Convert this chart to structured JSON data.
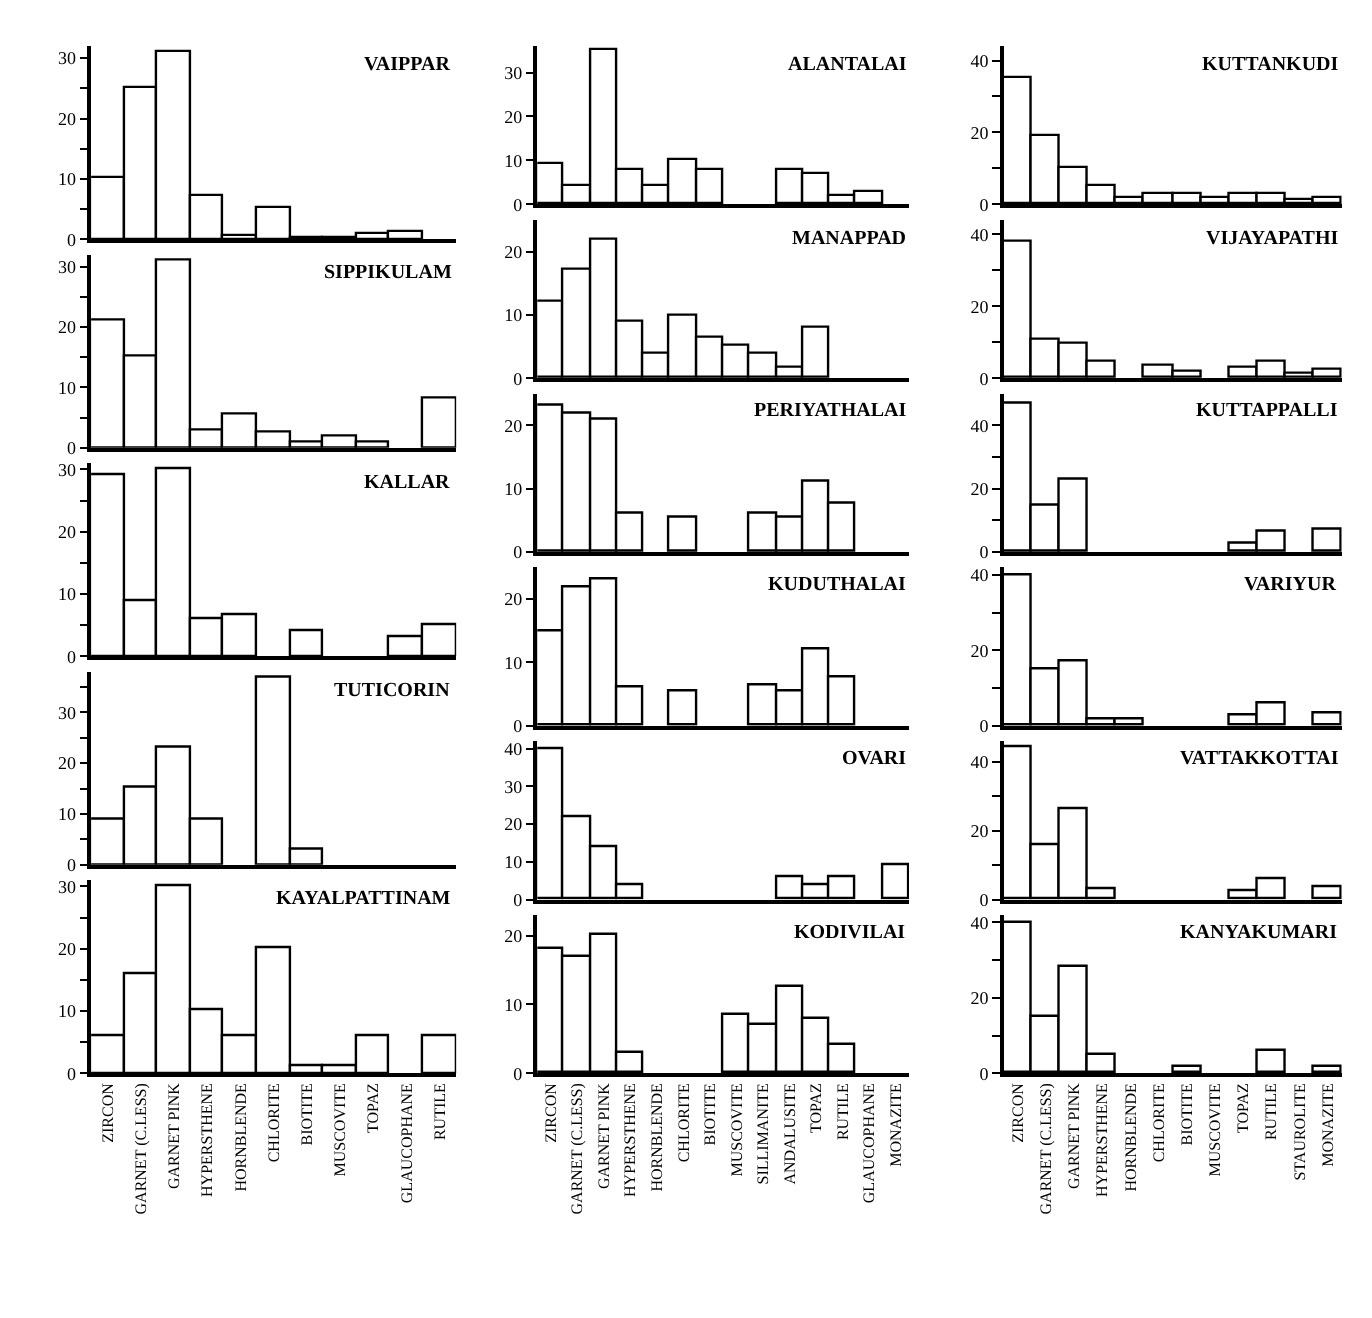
{
  "chart_data": [
    {
      "type": "bar",
      "title": "VAIPPAR",
      "categories": [
        "ZIRCON",
        "GARNET (C.LESS)",
        "GARNET PINK",
        "HYPERSTHENE",
        "HORNBLENDE",
        "CHLORITE",
        "BIOTITE",
        "MUSCOVITE",
        "TOPAZ",
        "GLAUCOPHANE",
        "RUTILE"
      ],
      "values": [
        10,
        25,
        31,
        7,
        0.5,
        5,
        0.3,
        0.3,
        1,
        1.2,
        null
      ],
      "color": "#ffffff",
      "ylim": [
        0,
        32
      ],
      "yticks": [
        0,
        {
          "value": 5,
          "label": null
        },
        10,
        {
          "value": 15,
          "label": null
        },
        20,
        {
          "value": 25,
          "label": null
        },
        30
      ],
      "tick_labels": "y"
    },
    {
      "type": "bar",
      "title": "SIPPIKULAM",
      "categories": [
        "ZIRCON",
        "GARNET (C.LESS)",
        "GARNET PINK",
        "HYPERSTHENE",
        "HORNBLENDE",
        "CHLORITE",
        "BIOTITE",
        "MUSCOVITE",
        "TOPAZ",
        "GLAUCOPHANE",
        "RUTILE"
      ],
      "values": [
        21,
        15,
        31,
        3,
        5.5,
        2.5,
        1,
        2,
        1,
        null,
        8
      ],
      "color": "#ffffff",
      "ylim": [
        0,
        32
      ],
      "yticks": [
        0,
        {
          "value": 5,
          "label": null
        },
        10,
        {
          "value": 15,
          "label": null
        },
        20,
        {
          "value": 25,
          "label": null
        },
        30
      ],
      "tick_labels": "y"
    },
    {
      "type": "bar",
      "title": "KALLAR",
      "categories": [
        "ZIRCON",
        "GARNET (C.LESS)",
        "GARNET PINK",
        "HYPERSTHENE",
        "HORNBLENDE",
        "CHLORITE",
        "BIOTITE",
        "MUSCOVITE",
        "TOPAZ",
        "GLAUCOPHANE",
        "RUTILE"
      ],
      "values": [
        29,
        9,
        30,
        6,
        6.5,
        null,
        4,
        null,
        null,
        3,
        5
      ],
      "color": "#ffffff",
      "ylim": [
        0,
        31
      ],
      "yticks": [
        0,
        {
          "value": 5,
          "label": null
        },
        10,
        {
          "value": 15,
          "label": null
        },
        20,
        {
          "value": 25,
          "label": null
        },
        30
      ],
      "tick_labels": "y"
    },
    {
      "type": "bar",
      "title": "TUTICORIN",
      "categories": [
        "ZIRCON",
        "GARNET (C.LESS)",
        "GARNET PINK",
        "HYPERSTHENE",
        "HORNBLENDE",
        "CHLORITE",
        "BIOTITE",
        "MUSCOVITE",
        "TOPAZ",
        "GLAUCOPHANE",
        "RUTILE"
      ],
      "values": [
        9,
        15,
        23,
        9,
        null,
        37,
        3,
        null,
        null,
        null,
        null
      ],
      "color": "#ffffff",
      "ylim": [
        0,
        38
      ],
      "yticks": [
        0,
        {
          "value": 5,
          "label": null
        },
        10,
        {
          "value": 15,
          "label": null
        },
        20,
        {
          "value": 25,
          "label": null
        },
        30,
        {
          "value": 35,
          "label": null
        }
      ],
      "tick_labels": "y"
    },
    {
      "type": "bar",
      "title": "KAYALPATTINAM",
      "categories": [
        "ZIRCON",
        "GARNET (C.LESS)",
        "GARNET PINK",
        "HYPERSTHENE",
        "HORNBLENDE",
        "CHLORITE",
        "BIOTITE",
        "MUSCOVITE",
        "TOPAZ",
        "GLAUCOPHANE",
        "RUTILE"
      ],
      "values": [
        6,
        16,
        30,
        10,
        6,
        20,
        1,
        1,
        6,
        null,
        6
      ],
      "color": "#ffffff",
      "ylim": [
        0,
        31
      ],
      "yticks": [
        0,
        {
          "value": 5,
          "label": null
        },
        10,
        {
          "value": 15,
          "label": null
        },
        20,
        {
          "value": 25,
          "label": null
        },
        30
      ]
    },
    {
      "type": "bar",
      "title": "ALANTALAI",
      "categories": [
        "ZIRCON",
        "GARNET (C.LESS)",
        "GARNET PINK",
        "HYPERSTHENE",
        "HORNBLENDE",
        "CHLORITE",
        "BIOTITE",
        "MUSCOVITE",
        "SILLIMANITE",
        "ANDALUSITE",
        "TOPAZ",
        "RUTILE",
        "GLAUCOPHANE",
        "MONAZITE"
      ],
      "values": [
        9,
        4,
        35,
        8,
        4,
        10,
        8,
        null,
        null,
        8,
        7,
        2,
        3,
        null
      ],
      "color": "#ffffff",
      "ylim": [
        0,
        36
      ],
      "yticks": [
        0,
        10,
        20,
        30
      ],
      "tick_labels": "y"
    },
    {
      "type": "bar",
      "title": "MANAPPAD",
      "categories": [
        "ZIRCON",
        "GARNET (C.LESS)",
        "GARNET PINK",
        "HYPERSTHENE",
        "HORNBLENDE",
        "CHLORITE",
        "BIOTITE",
        "MUSCOVITE",
        "SILLIMANITE",
        "ANDALUSITE",
        "TOPAZ",
        "RUTILE",
        "GLAUCOPHANE",
        "MONAZITE"
      ],
      "values": [
        12,
        17,
        22,
        9,
        4,
        10,
        6.5,
        5,
        4,
        1.5,
        8,
        null,
        null,
        null
      ],
      "color": "#ffffff",
      "ylim": [
        0,
        25
      ],
      "yticks": [
        0,
        10,
        20
      ],
      "tick_labels": "y"
    },
    {
      "type": "bar",
      "title": "PERIYATHALAI",
      "categories": [
        "ZIRCON",
        "GARNET (C.LESS)",
        "GARNET PINK",
        "HYPERSTHENE",
        "HORNBLENDE",
        "CHLORITE",
        "BIOTITE",
        "MUSCOVITE",
        "SILLIMANITE",
        "ANDALUSITE",
        "TOPAZ",
        "RUTILE",
        "GLAUCOPHANE",
        "MONAZITE"
      ],
      "values": [
        23,
        22,
        21,
        6,
        null,
        5.5,
        null,
        null,
        6,
        5.5,
        11,
        7.5,
        null,
        null
      ],
      "color": "#ffffff",
      "ylim": [
        0,
        25
      ],
      "yticks": [
        0,
        10,
        20
      ],
      "tick_labels": "y"
    },
    {
      "type": "bar",
      "title": "KUDUTHALAI",
      "categories": [
        "ZIRCON",
        "GARNET (C.LESS)",
        "GARNET PINK",
        "HYPERSTHENE",
        "HORNBLENDE",
        "CHLORITE",
        "BIOTITE",
        "MUSCOVITE",
        "SILLIMANITE",
        "ANDALUSITE",
        "TOPAZ",
        "RUTILE",
        "GLAUCOPHANE",
        "MONAZITE"
      ],
      "values": [
        15,
        22,
        23,
        6,
        null,
        5.5,
        null,
        null,
        6.5,
        5.5,
        12,
        7.5,
        null,
        null
      ],
      "color": "#ffffff",
      "ylim": [
        0,
        25
      ],
      "yticks": [
        0,
        10,
        20
      ],
      "tick_labels": "y"
    },
    {
      "type": "bar",
      "title": "OVARI",
      "categories": [
        "ZIRCON",
        "GARNET (C.LESS)",
        "GARNET PINK",
        "HYPERSTHENE",
        "HORNBLENDE",
        "CHLORITE",
        "BIOTITE",
        "MUSCOVITE",
        "SILLIMANITE",
        "ANDALUSITE",
        "TOPAZ",
        "RUTILE",
        "GLAUCOPHANE",
        "MONAZITE"
      ],
      "values": [
        40,
        22,
        14,
        4,
        null,
        null,
        null,
        null,
        null,
        6,
        4,
        6,
        null,
        9
      ],
      "color": "#ffffff",
      "ylim": [
        0,
        42
      ],
      "yticks": [
        0,
        10,
        20,
        30,
        40
      ],
      "tick_labels": "y"
    },
    {
      "type": "bar",
      "title": "KODIVILAI",
      "categories": [
        "ZIRCON",
        "GARNET (C.LESS)",
        "GARNET PINK",
        "HYPERSTHENE",
        "HORNBLENDE",
        "CHLORITE",
        "BIOTITE",
        "MUSCOVITE",
        "SILLIMANITE",
        "ANDALUSITE",
        "TOPAZ",
        "RUTILE",
        "GLAUCOPHANE",
        "MONAZITE"
      ],
      "values": [
        18,
        17,
        20,
        3,
        null,
        null,
        null,
        8.5,
        7,
        12.5,
        8,
        4,
        null,
        null
      ],
      "color": "#ffffff",
      "ylim": [
        0,
        23
      ],
      "yticks": [
        0,
        10,
        20
      ]
    },
    {
      "type": "bar",
      "title": "KUTTANKUDI",
      "categories": [
        "ZIRCON",
        "GARNET (C.LESS)",
        "GARNET PINK",
        "HYPERSTHENE",
        "HORNBLENDE",
        "CHLORITE",
        "BIOTITE",
        "MUSCOVITE",
        "TOPAZ",
        "RUTILE",
        "STAUROLITE",
        "MONAZITE"
      ],
      "values": [
        35,
        19,
        10,
        5,
        2,
        3,
        3,
        2,
        3,
        3,
        1,
        2
      ],
      "color": "#ffffff",
      "ylim": [
        0,
        44
      ],
      "yticks": [
        0,
        {
          "value": 10,
          "label": null
        },
        20,
        {
          "value": 30,
          "label": null
        },
        40
      ],
      "tick_labels": "y"
    },
    {
      "type": "bar",
      "title": "VIJAYAPATHI",
      "categories": [
        "ZIRCON",
        "GARNET (C.LESS)",
        "GARNET PINK",
        "HYPERSTHENE",
        "HORNBLENDE",
        "CHLORITE",
        "BIOTITE",
        "MUSCOVITE",
        "TOPAZ",
        "RUTILE",
        "STAUROLITE",
        "MONAZITE"
      ],
      "values": [
        38,
        10.5,
        9.5,
        4.5,
        null,
        3.5,
        2,
        null,
        3,
        4.5,
        1,
        2.5
      ],
      "color": "#ffffff",
      "ylim": [
        0,
        44
      ],
      "yticks": [
        0,
        {
          "value": 10,
          "label": null
        },
        20,
        {
          "value": 30,
          "label": null
        },
        40
      ],
      "tick_labels": "y"
    },
    {
      "type": "bar",
      "title": "KUTTAPPALLI",
      "categories": [
        "ZIRCON",
        "GARNET (C.LESS)",
        "GARNET PINK",
        "HYPERSTHENE",
        "HORNBLENDE",
        "CHLORITE",
        "BIOTITE",
        "MUSCOVITE",
        "TOPAZ",
        "RUTILE",
        "STAUROLITE",
        "MONAZITE"
      ],
      "values": [
        47,
        14.5,
        23,
        null,
        null,
        null,
        null,
        null,
        2.5,
        6.5,
        null,
        7
      ],
      "color": "#ffffff",
      "ylim": [
        0,
        50
      ],
      "yticks": [
        0,
        {
          "value": 10,
          "label": null
        },
        20,
        {
          "value": 30,
          "label": null
        },
        40
      ],
      "tick_labels": "y"
    },
    {
      "type": "bar",
      "title": "VARIYUR",
      "categories": [
        "ZIRCON",
        "GARNET (C.LESS)",
        "GARNET PINK",
        "HYPERSTHENE",
        "HORNBLENDE",
        "CHLORITE",
        "BIOTITE",
        "MUSCOVITE",
        "TOPAZ",
        "RUTILE",
        "STAUROLITE",
        "MONAZITE"
      ],
      "values": [
        40,
        15,
        17,
        1.5,
        1.5,
        null,
        null,
        null,
        2.5,
        6,
        null,
        3.5
      ],
      "color": "#ffffff",
      "ylim": [
        0,
        42
      ],
      "yticks": [
        0,
        {
          "value": 10,
          "label": null
        },
        20,
        {
          "value": 30,
          "label": null
        },
        40
      ],
      "tick_labels": "y"
    },
    {
      "type": "bar",
      "title": "VATTAKKOTTAI",
      "categories": [
        "ZIRCON",
        "GARNET (C.LESS)",
        "GARNET PINK",
        "HYPERSTHENE",
        "HORNBLENDE",
        "CHLORITE",
        "BIOTITE",
        "MUSCOVITE",
        "TOPAZ",
        "RUTILE",
        "STAUROLITE",
        "MONAZITE"
      ],
      "values": [
        44,
        16,
        26,
        3,
        null,
        null,
        null,
        null,
        2.5,
        6,
        null,
        3.5
      ],
      "color": "#ffffff",
      "ylim": [
        0,
        46
      ],
      "yticks": [
        0,
        {
          "value": 10,
          "label": null
        },
        20,
        {
          "value": 30,
          "label": null
        },
        40
      ],
      "tick_labels": "y"
    },
    {
      "type": "bar",
      "title": "KANYAKUMARI",
      "categories": [
        "ZIRCON",
        "GARNET (C.LESS)",
        "GARNET PINK",
        "HYPERSTHENE",
        "HORNBLENDE",
        "CHLORITE",
        "BIOTITE",
        "MUSCOVITE",
        "TOPAZ",
        "RUTILE",
        "STAUROLITE",
        "MONAZITE"
      ],
      "values": [
        40,
        15,
        28,
        5,
        null,
        null,
        1.5,
        null,
        null,
        6,
        null,
        1.5
      ],
      "color": "#ffffff",
      "ylim": [
        0,
        42
      ],
      "yticks": [
        0,
        {
          "value": 10,
          "label": null
        },
        20,
        {
          "value": 30,
          "label": null
        },
        40
      ]
    }
  ]
}
